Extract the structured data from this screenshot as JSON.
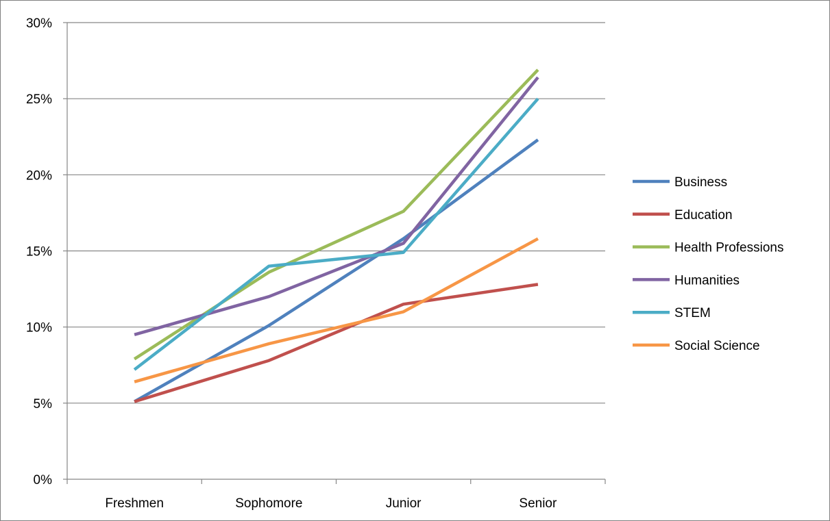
{
  "chart_data": {
    "type": "line",
    "title": "",
    "xlabel": "",
    "ylabel": "",
    "categories": [
      "Freshmen",
      "Sophomore",
      "Junior",
      "Senior"
    ],
    "ylim": [
      0,
      30
    ],
    "yticks": [
      0,
      5,
      10,
      15,
      20,
      25,
      30
    ],
    "ytick_labels": [
      "0%",
      "5%",
      "10%",
      "15%",
      "20%",
      "25%",
      "30%"
    ],
    "y_unit": "percent",
    "grid": "horizontal",
    "legend_position": "right",
    "series": [
      {
        "name": "Business",
        "color": "#4f81bd",
        "values": [
          5.1,
          10.1,
          15.8,
          22.3
        ]
      },
      {
        "name": "Education",
        "color": "#c0504d",
        "values": [
          5.1,
          7.8,
          11.5,
          12.8
        ]
      },
      {
        "name": "Health Professions",
        "color": "#9bbb59",
        "values": [
          7.9,
          13.6,
          17.6,
          26.9
        ]
      },
      {
        "name": "Humanities",
        "color": "#8064a2",
        "values": [
          9.5,
          12.0,
          15.5,
          26.4
        ]
      },
      {
        "name": "STEM",
        "color": "#4bacc6",
        "values": [
          7.2,
          14.0,
          14.9,
          25.0
        ]
      },
      {
        "name": "Social Science",
        "color": "#f79646",
        "values": [
          6.4,
          8.9,
          11.0,
          15.8
        ]
      }
    ]
  }
}
